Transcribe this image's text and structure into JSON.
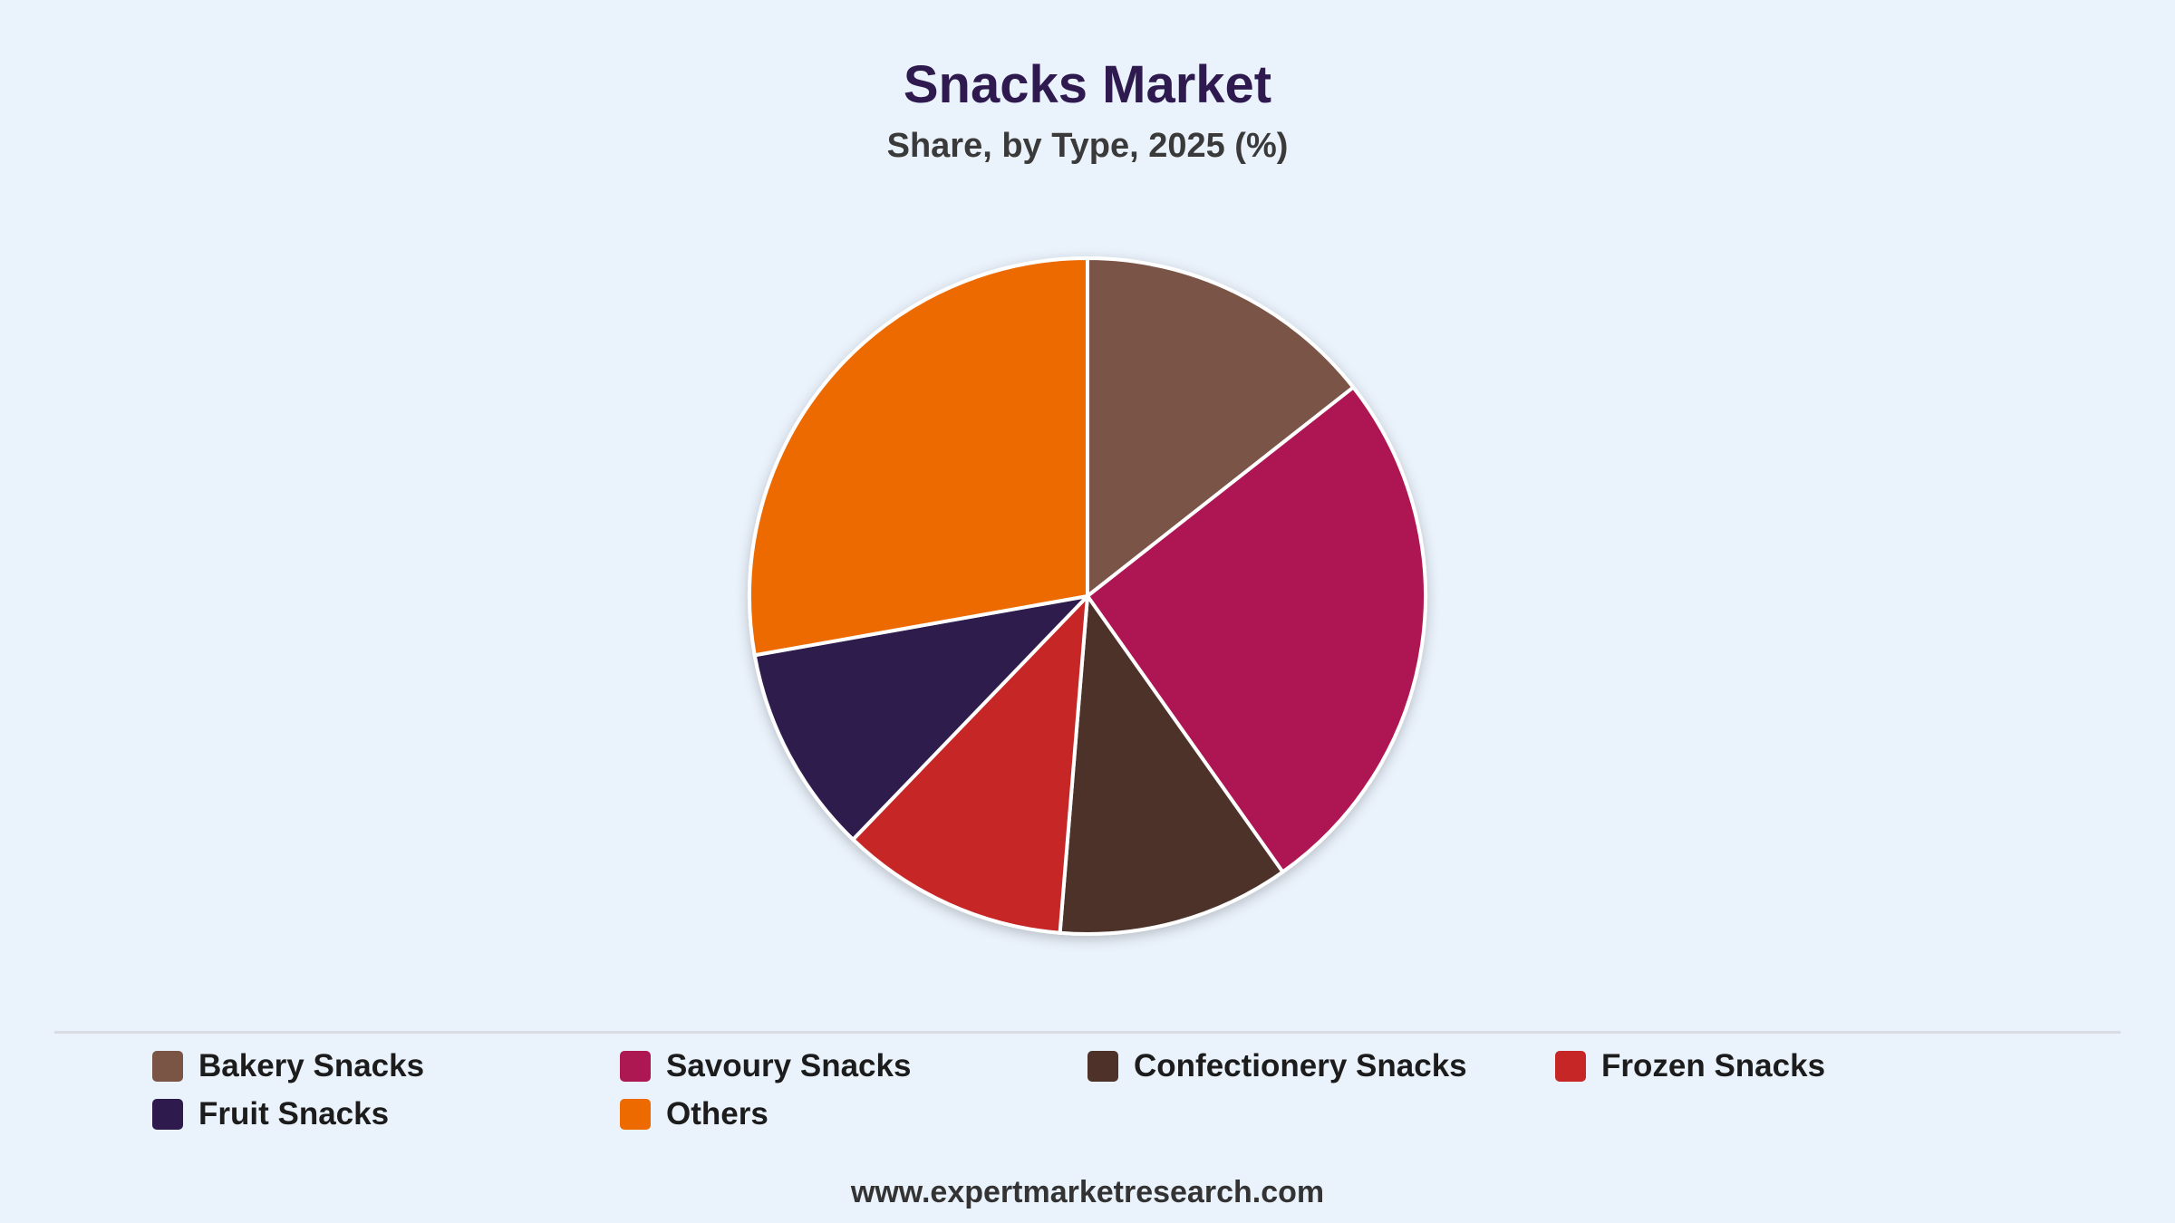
{
  "chart_data": {
    "type": "pie",
    "title": "Snacks Market",
    "subtitle": "Share, by Type, 2025 (%)",
    "slices": [
      {
        "label": "Bakery Snacks",
        "value": 14.4,
        "color": "#7a5546"
      },
      {
        "label": "Savoury Snacks",
        "value": 25.8,
        "color": "#ad1752"
      },
      {
        "label": "Confectionery Snacks",
        "value": 11.1,
        "color": "#4e322a"
      },
      {
        "label": "Frozen Snacks",
        "value": 10.9,
        "color": "#c62626"
      },
      {
        "label": "Fruit Snacks",
        "value": 10.0,
        "color": "#2f1a4e"
      },
      {
        "label": "Others",
        "value": 27.8,
        "color": "#ec6a00"
      }
    ],
    "legend_position": "bottom"
  },
  "legend": {
    "items": [
      {
        "label": "Bakery Snacks",
        "color": "#7a5546"
      },
      {
        "label": "Savoury Snacks",
        "color": "#ad1752"
      },
      {
        "label": "Confectionery Snacks",
        "color": "#4e322a"
      },
      {
        "label": "Frozen Snacks",
        "color": "#c62626"
      },
      {
        "label": "Fruit Snacks",
        "color": "#2f1a4e"
      },
      {
        "label": "Others",
        "color": "#ec6a00"
      }
    ]
  },
  "footer": {
    "source": "www.expertmarketresearch.com"
  }
}
